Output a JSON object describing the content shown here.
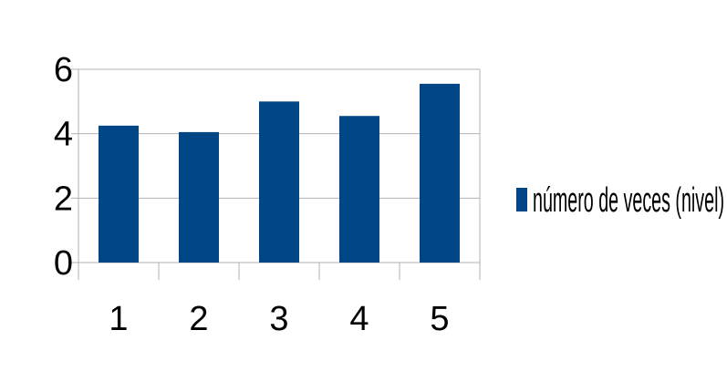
{
  "chart_data": {
    "type": "bar",
    "title": "",
    "xlabel": "",
    "ylabel": "",
    "categories": [
      "1",
      "2",
      "3",
      "4",
      "5"
    ],
    "series": [
      {
        "name": "número de veces (nivel)",
        "values": [
          4.25,
          4.05,
          5.0,
          4.55,
          5.55
        ]
      }
    ],
    "ylim": [
      0,
      6
    ],
    "yticks": [
      0,
      2,
      4,
      6
    ],
    "grid": true,
    "legend_position": "right",
    "colors": {
      "bar": "#004586",
      "grid": "#b3b3b3",
      "axis": "#b3b3b3"
    }
  }
}
